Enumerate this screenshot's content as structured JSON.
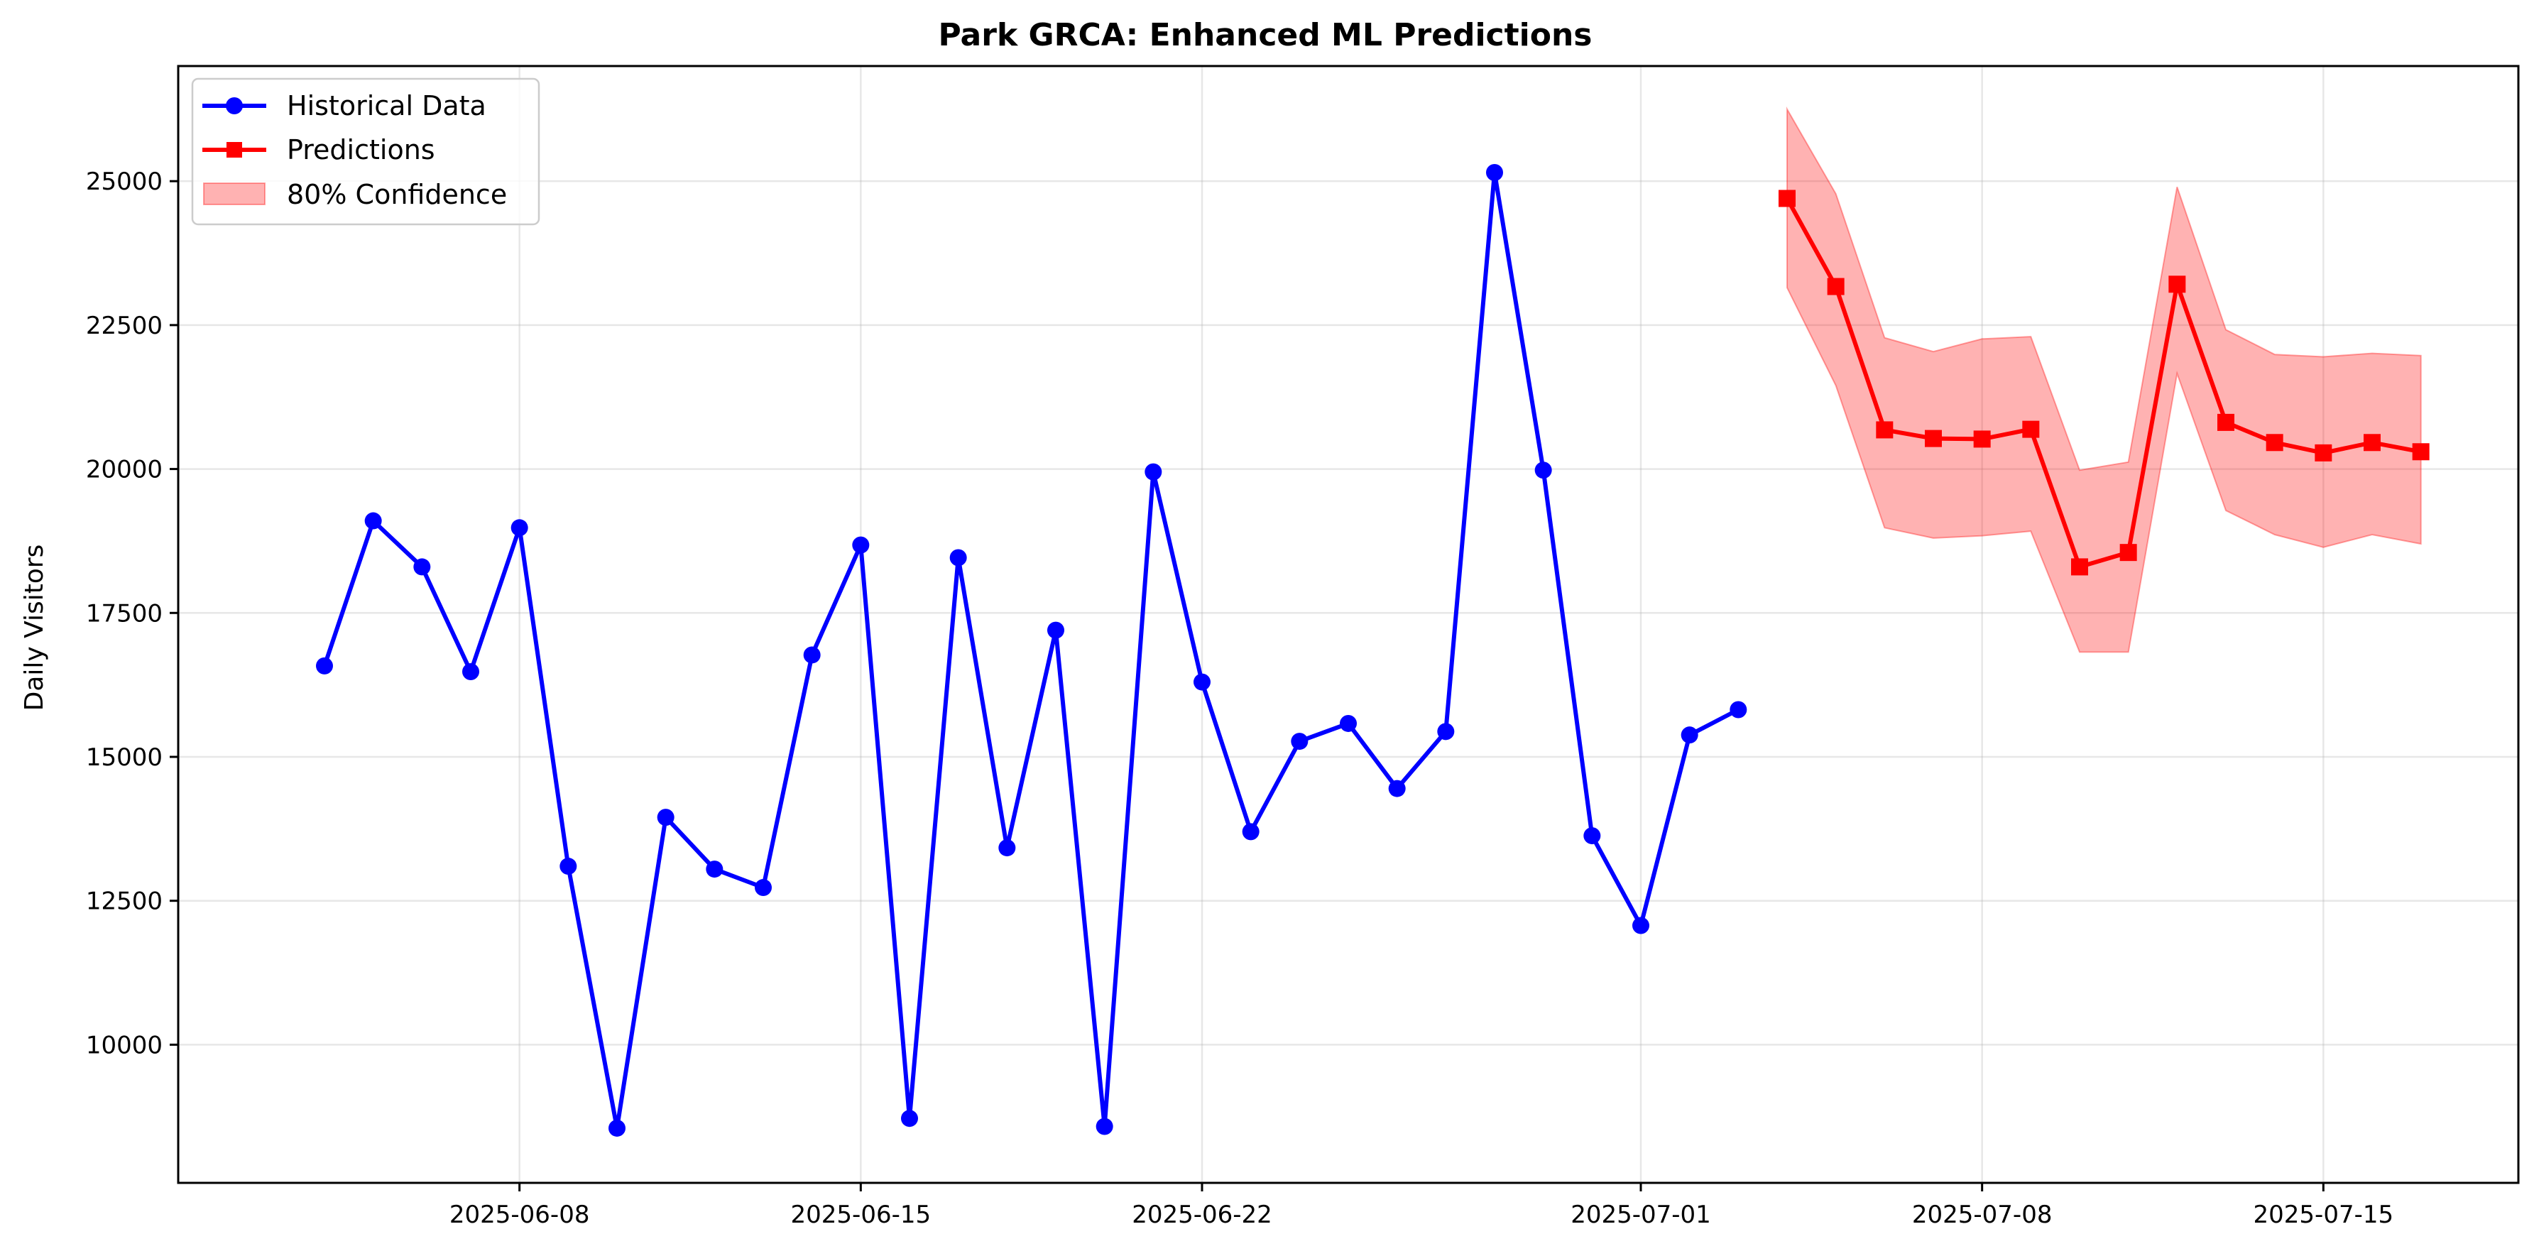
{
  "chart_data": {
    "type": "line",
    "title": "Park GRCA: Enhanced ML Predictions",
    "xlabel": "",
    "ylabel": "Daily Visitors",
    "grid": true,
    "legend_placement": "top-left",
    "ylim": [
      7600,
      27000
    ],
    "xlim": [
      "2025-06-01",
      "2025-07-19"
    ],
    "x_ticks": [
      "2025-06-08",
      "2025-06-15",
      "2025-06-22",
      "2025-07-01",
      "2025-07-08",
      "2025-07-15"
    ],
    "y_ticks": [
      10000,
      12500,
      15000,
      17500,
      20000,
      22500,
      25000
    ],
    "colors": {
      "historical": "#0000ff",
      "predictions": "#ff0000",
      "confidence_fill": "#ff0000"
    },
    "series": [
      {
        "name": "Historical Data",
        "marker": "circle",
        "points": [
          {
            "x": "2025-06-04",
            "y": 16580
          },
          {
            "x": "2025-06-05",
            "y": 19100
          },
          {
            "x": "2025-06-06",
            "y": 18300
          },
          {
            "x": "2025-06-07",
            "y": 16480
          },
          {
            "x": "2025-06-08",
            "y": 18980
          },
          {
            "x": "2025-06-09",
            "y": 13100
          },
          {
            "x": "2025-06-10",
            "y": 8550
          },
          {
            "x": "2025-06-11",
            "y": 13950
          },
          {
            "x": "2025-06-12",
            "y": 13050
          },
          {
            "x": "2025-06-13",
            "y": 12730
          },
          {
            "x": "2025-06-14",
            "y": 16770
          },
          {
            "x": "2025-06-15",
            "y": 18680
          },
          {
            "x": "2025-06-16",
            "y": 8720
          },
          {
            "x": "2025-06-17",
            "y": 18460
          },
          {
            "x": "2025-06-18",
            "y": 13420
          },
          {
            "x": "2025-06-19",
            "y": 17200
          },
          {
            "x": "2025-06-20",
            "y": 8580
          },
          {
            "x": "2025-06-21",
            "y": 19950
          },
          {
            "x": "2025-06-22",
            "y": 16300
          },
          {
            "x": "2025-06-23",
            "y": 13700
          },
          {
            "x": "2025-06-24",
            "y": 15270
          },
          {
            "x": "2025-06-25",
            "y": 15580
          },
          {
            "x": "2025-06-26",
            "y": 14450
          },
          {
            "x": "2025-06-27",
            "y": 15440
          },
          {
            "x": "2025-06-28",
            "y": 25150
          },
          {
            "x": "2025-06-29",
            "y": 19980
          },
          {
            "x": "2025-06-30",
            "y": 13630
          },
          {
            "x": "2025-07-01",
            "y": 12070
          },
          {
            "x": "2025-07-02",
            "y": 15380
          },
          {
            "x": "2025-07-03",
            "y": 15820
          }
        ]
      },
      {
        "name": "Predictions",
        "marker": "square",
        "points": [
          {
            "x": "2025-07-04",
            "y": 24700
          },
          {
            "x": "2025-07-05",
            "y": 23170
          },
          {
            "x": "2025-07-06",
            "y": 20680
          },
          {
            "x": "2025-07-07",
            "y": 20530
          },
          {
            "x": "2025-07-08",
            "y": 20520
          },
          {
            "x": "2025-07-09",
            "y": 20690
          },
          {
            "x": "2025-07-10",
            "y": 18300
          },
          {
            "x": "2025-07-11",
            "y": 18550
          },
          {
            "x": "2025-07-12",
            "y": 23210
          },
          {
            "x": "2025-07-13",
            "y": 20810
          },
          {
            "x": "2025-07-14",
            "y": 20460
          },
          {
            "x": "2025-07-15",
            "y": 20280
          },
          {
            "x": "2025-07-16",
            "y": 20460
          },
          {
            "x": "2025-07-17",
            "y": 20300
          }
        ]
      }
    ],
    "confidence_band": {
      "name": "80% Confidence",
      "points": [
        {
          "x": "2025-07-04",
          "lower": 23150,
          "upper": 26250
        },
        {
          "x": "2025-07-05",
          "lower": 21450,
          "upper": 24780
        },
        {
          "x": "2025-07-06",
          "lower": 18980,
          "upper": 22280
        },
        {
          "x": "2025-07-07",
          "lower": 18800,
          "upper": 22040
        },
        {
          "x": "2025-07-08",
          "lower": 18840,
          "upper": 22260
        },
        {
          "x": "2025-07-09",
          "lower": 18920,
          "upper": 22300
        },
        {
          "x": "2025-07-10",
          "lower": 16820,
          "upper": 19980
        },
        {
          "x": "2025-07-11",
          "lower": 16820,
          "upper": 20120
        },
        {
          "x": "2025-07-12",
          "lower": 21660,
          "upper": 24900
        },
        {
          "x": "2025-07-13",
          "lower": 19280,
          "upper": 22420
        },
        {
          "x": "2025-07-14",
          "lower": 18860,
          "upper": 21990
        },
        {
          "x": "2025-07-15",
          "lower": 18640,
          "upper": 21950
        },
        {
          "x": "2025-07-16",
          "lower": 18860,
          "upper": 22010
        },
        {
          "x": "2025-07-17",
          "lower": 18700,
          "upper": 21970
        }
      ]
    }
  }
}
